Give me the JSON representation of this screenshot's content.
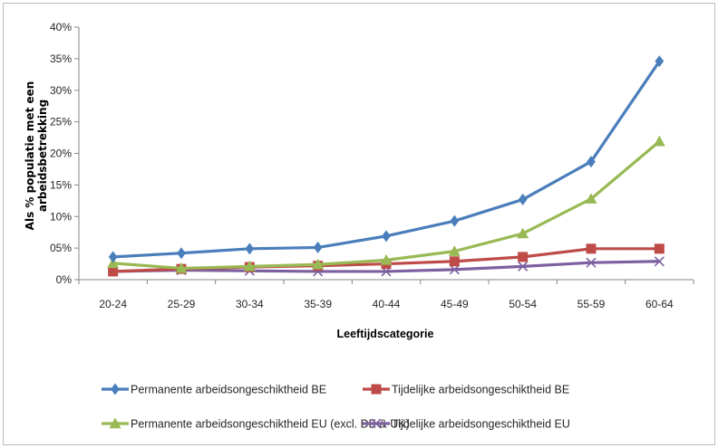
{
  "chart_data": {
    "type": "line",
    "xlabel": "Leeftijdscategorie",
    "ylabel": [
      "Als % populatie met een",
      "arbeidsbetrekking"
    ],
    "categories": [
      "20-24",
      "25-29",
      "30-34",
      "35-39",
      "40-44",
      "45-49",
      "50-54",
      "55-59",
      "60-64"
    ],
    "ylim": [
      0,
      40
    ],
    "yticks": [
      "0%",
      "05%",
      "10%",
      "15%",
      "20%",
      "25%",
      "30%",
      "35%",
      "40%"
    ],
    "grid": false,
    "legend_position": "bottom",
    "series": [
      {
        "name": "Permanente arbeidsongeschiktheid BE",
        "color": "#4a7ebb",
        "marker": "diamond",
        "values": [
          3.6,
          4.2,
          4.9,
          5.1,
          6.9,
          9.3,
          12.7,
          18.7,
          34.6
        ]
      },
      {
        "name": "Tijdelijke arbeidsongeschiktheid BE",
        "color": "#be4b48",
        "marker": "square",
        "values": [
          1.3,
          1.7,
          2.0,
          2.2,
          2.5,
          2.9,
          3.6,
          4.9,
          4.9
        ]
      },
      {
        "name": "Permanente arbeidsongeschiktheid EU (excl. DE & UK)",
        "color": "#98b954",
        "marker": "triangle",
        "values": [
          2.6,
          1.8,
          2.1,
          2.4,
          3.1,
          4.5,
          7.3,
          12.8,
          21.9
        ]
      },
      {
        "name": "Tijdelijke arbeidsongeschiktheid EU",
        "color": "#7d60a0",
        "marker": "x",
        "values": [
          1.3,
          1.5,
          1.4,
          1.3,
          1.3,
          1.6,
          2.1,
          2.7,
          2.9
        ]
      }
    ]
  }
}
